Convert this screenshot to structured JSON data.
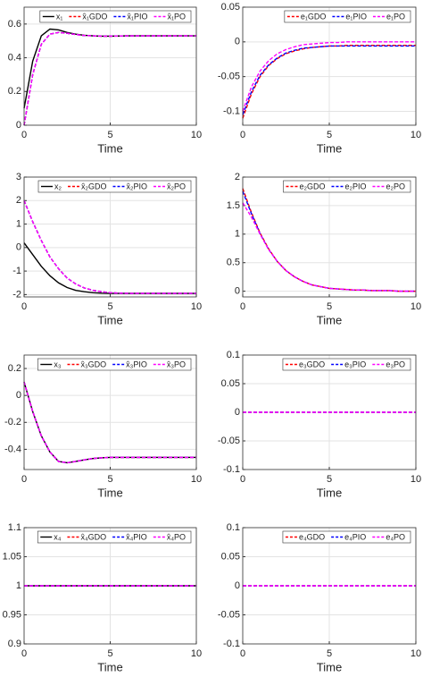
{
  "chart_data": [
    {
      "type": "line",
      "xlabel": "Time",
      "xlim": [
        0,
        10
      ],
      "xticks": [
        0,
        5,
        10
      ],
      "ylim": [
        0,
        0.7
      ],
      "yticks": [
        0,
        0.2,
        0.4,
        0.6
      ],
      "grid": true,
      "legend": "upper right",
      "x": [
        0,
        0.5,
        1,
        1.5,
        2,
        2.5,
        3,
        3.5,
        4,
        4.5,
        5,
        5.5,
        6,
        6.5,
        7,
        7.5,
        8,
        8.5,
        9,
        9.5,
        10
      ],
      "series": [
        {
          "name": "x₁",
          "color": "#000000",
          "linestyle": "solid",
          "values": [
            0.1,
            0.38,
            0.53,
            0.57,
            0.565,
            0.55,
            0.54,
            0.533,
            0.53,
            0.528,
            0.528,
            0.529,
            0.53,
            0.53,
            0.53,
            0.53,
            0.53,
            0.53,
            0.53,
            0.53,
            0.53
          ]
        },
        {
          "name": "x̂₁GDO",
          "color": "#ff0000",
          "linestyle": "dashed",
          "values": [
            0,
            0.3,
            0.48,
            0.54,
            0.55,
            0.545,
            0.538,
            0.532,
            0.53,
            0.528,
            0.528,
            0.529,
            0.53,
            0.53,
            0.53,
            0.53,
            0.53,
            0.53,
            0.53,
            0.53,
            0.53
          ]
        },
        {
          "name": "x̂₁PIO",
          "color": "#0000ff",
          "linestyle": "dashed",
          "values": [
            0,
            0.3,
            0.48,
            0.54,
            0.55,
            0.545,
            0.538,
            0.532,
            0.53,
            0.528,
            0.528,
            0.529,
            0.53,
            0.53,
            0.53,
            0.53,
            0.53,
            0.53,
            0.53,
            0.53,
            0.53
          ]
        },
        {
          "name": "x̂₁PO",
          "color": "#ff00ff",
          "linestyle": "dashed",
          "values": [
            0,
            0.3,
            0.48,
            0.54,
            0.55,
            0.545,
            0.538,
            0.532,
            0.53,
            0.528,
            0.528,
            0.529,
            0.53,
            0.53,
            0.53,
            0.53,
            0.53,
            0.53,
            0.53,
            0.53,
            0.53
          ]
        }
      ]
    },
    {
      "type": "line",
      "xlabel": "Time",
      "xlim": [
        0,
        10
      ],
      "xticks": [
        0,
        5,
        10
      ],
      "ylim": [
        -0.12,
        0.05
      ],
      "yticks": [
        -0.1,
        -0.05,
        0,
        0.05
      ],
      "grid": true,
      "legend": "upper right",
      "x": [
        0,
        0.5,
        1,
        1.5,
        2,
        2.5,
        3,
        3.5,
        4,
        4.5,
        5,
        5.5,
        6,
        6.5,
        7,
        7.5,
        8,
        8.5,
        9,
        9.5,
        10
      ],
      "series": [
        {
          "name": "e₁GDO",
          "color": "#ff0000",
          "linestyle": "dashed",
          "values": [
            -0.11,
            -0.075,
            -0.05,
            -0.034,
            -0.024,
            -0.017,
            -0.013,
            -0.01,
            -0.008,
            -0.007,
            -0.006,
            -0.006,
            -0.005,
            -0.005,
            -0.005,
            -0.005,
            -0.005,
            -0.005,
            -0.005,
            -0.005,
            -0.005
          ]
        },
        {
          "name": "e₁PIO",
          "color": "#0000ff",
          "linestyle": "dashed",
          "values": [
            -0.105,
            -0.072,
            -0.048,
            -0.033,
            -0.023,
            -0.016,
            -0.012,
            -0.009,
            -0.008,
            -0.007,
            -0.006,
            -0.006,
            -0.006,
            -0.006,
            -0.006,
            -0.006,
            -0.006,
            -0.006,
            -0.006,
            -0.006,
            -0.006
          ]
        },
        {
          "name": "e₁PO",
          "color": "#ff00ff",
          "linestyle": "dashed",
          "values": [
            -0.1,
            -0.065,
            -0.042,
            -0.027,
            -0.017,
            -0.011,
            -0.007,
            -0.004,
            -0.003,
            -0.002,
            -0.001,
            -0.001,
            0,
            0,
            0,
            0,
            0,
            0,
            0,
            0,
            0
          ]
        }
      ]
    },
    {
      "type": "line",
      "xlabel": "Time",
      "xlim": [
        0,
        10
      ],
      "xticks": [
        0,
        5,
        10
      ],
      "ylim": [
        -2.1,
        3
      ],
      "yticks": [
        -2,
        -1,
        0,
        1,
        2,
        3
      ],
      "grid": true,
      "legend": "upper right",
      "x": [
        0,
        0.5,
        1,
        1.5,
        2,
        2.5,
        3,
        3.5,
        4,
        4.5,
        5,
        5.5,
        6,
        6.5,
        7,
        7.5,
        8,
        8.5,
        9,
        9.5,
        10
      ],
      "series": [
        {
          "name": "x₂",
          "color": "#000000",
          "linestyle": "solid",
          "values": [
            0.2,
            -0.3,
            -0.8,
            -1.2,
            -1.5,
            -1.7,
            -1.82,
            -1.88,
            -1.92,
            -1.94,
            -1.95,
            -1.95,
            -1.95,
            -1.95,
            -1.95,
            -1.95,
            -1.95,
            -1.95,
            -1.95,
            -1.95,
            -1.95
          ]
        },
        {
          "name": "x̂₂GDO",
          "color": "#ff0000",
          "linestyle": "dashed",
          "values": [
            2,
            1.1,
            0.3,
            -0.4,
            -0.9,
            -1.3,
            -1.55,
            -1.72,
            -1.82,
            -1.88,
            -1.92,
            -1.94,
            -1.95,
            -1.95,
            -1.95,
            -1.95,
            -1.95,
            -1.95,
            -1.95,
            -1.95,
            -1.95
          ]
        },
        {
          "name": "x̂₂PIO",
          "color": "#0000ff",
          "linestyle": "dashed",
          "values": [
            2,
            1.1,
            0.3,
            -0.4,
            -0.9,
            -1.3,
            -1.55,
            -1.72,
            -1.82,
            -1.88,
            -1.92,
            -1.94,
            -1.95,
            -1.95,
            -1.95,
            -1.95,
            -1.95,
            -1.95,
            -1.95,
            -1.95,
            -1.95
          ]
        },
        {
          "name": "x̂₂PO",
          "color": "#ff00ff",
          "linestyle": "dashed",
          "values": [
            2,
            1.1,
            0.3,
            -0.4,
            -0.9,
            -1.3,
            -1.55,
            -1.72,
            -1.82,
            -1.88,
            -1.92,
            -1.94,
            -1.95,
            -1.95,
            -1.95,
            -1.95,
            -1.95,
            -1.95,
            -1.95,
            -1.95,
            -1.95
          ]
        }
      ]
    },
    {
      "type": "line",
      "xlabel": "Time",
      "xlim": [
        0,
        10
      ],
      "xticks": [
        0,
        5,
        10
      ],
      "ylim": [
        -0.1,
        2
      ],
      "yticks": [
        0,
        0.5,
        1,
        1.5,
        2
      ],
      "grid": true,
      "legend": "upper right",
      "x": [
        0,
        0.5,
        1,
        1.5,
        2,
        2.5,
        3,
        3.5,
        4,
        4.5,
        5,
        5.5,
        6,
        6.5,
        7,
        7.5,
        8,
        8.5,
        9,
        9.5,
        10
      ],
      "series": [
        {
          "name": "e₂GDO",
          "color": "#ff0000",
          "linestyle": "dashed",
          "values": [
            1.8,
            1.38,
            1.02,
            0.74,
            0.52,
            0.36,
            0.25,
            0.17,
            0.11,
            0.08,
            0.05,
            0.04,
            0.03,
            0.02,
            0.02,
            0.01,
            0.01,
            0.01,
            0,
            0,
            0
          ]
        },
        {
          "name": "e₂PIO",
          "color": "#0000ff",
          "linestyle": "dashed",
          "values": [
            1.75,
            1.36,
            1.01,
            0.73,
            0.52,
            0.36,
            0.25,
            0.17,
            0.11,
            0.08,
            0.05,
            0.04,
            0.03,
            0.02,
            0.02,
            0.01,
            0.01,
            0.01,
            0,
            0,
            0
          ]
        },
        {
          "name": "e₂PO",
          "color": "#ff00ff",
          "linestyle": "dashed",
          "values": [
            1.55,
            1.3,
            1.0,
            0.73,
            0.52,
            0.36,
            0.25,
            0.17,
            0.11,
            0.08,
            0.05,
            0.04,
            0.03,
            0.02,
            0.02,
            0.01,
            0.01,
            0.01,
            0,
            0,
            0
          ]
        }
      ]
    },
    {
      "type": "line",
      "xlabel": "Time",
      "xlim": [
        0,
        10
      ],
      "xticks": [
        0,
        5,
        10
      ],
      "ylim": [
        -0.55,
        0.3
      ],
      "yticks": [
        -0.4,
        -0.2,
        0,
        0.2
      ],
      "grid": true,
      "legend": "upper right",
      "x": [
        0,
        0.5,
        1,
        1.5,
        2,
        2.5,
        3,
        3.5,
        4,
        4.5,
        5,
        5.5,
        6,
        6.5,
        7,
        7.5,
        8,
        8.5,
        9,
        9.5,
        10
      ],
      "series": [
        {
          "name": "x₃",
          "color": "#000000",
          "linestyle": "solid",
          "values": [
            0.1,
            -0.12,
            -0.3,
            -0.42,
            -0.49,
            -0.5,
            -0.49,
            -0.478,
            -0.468,
            -0.463,
            -0.46,
            -0.46,
            -0.46,
            -0.46,
            -0.46,
            -0.46,
            -0.46,
            -0.46,
            -0.46,
            -0.46,
            -0.46
          ]
        },
        {
          "name": "x̂₃GDO",
          "color": "#ff0000",
          "linestyle": "dashed",
          "values": [
            0.1,
            -0.12,
            -0.3,
            -0.42,
            -0.49,
            -0.5,
            -0.49,
            -0.478,
            -0.468,
            -0.463,
            -0.46,
            -0.46,
            -0.46,
            -0.46,
            -0.46,
            -0.46,
            -0.46,
            -0.46,
            -0.46,
            -0.46,
            -0.46
          ]
        },
        {
          "name": "x̂₃PIO",
          "color": "#0000ff",
          "linestyle": "dashed",
          "values": [
            0.1,
            -0.12,
            -0.3,
            -0.42,
            -0.49,
            -0.5,
            -0.49,
            -0.478,
            -0.468,
            -0.463,
            -0.46,
            -0.46,
            -0.46,
            -0.46,
            -0.46,
            -0.46,
            -0.46,
            -0.46,
            -0.46,
            -0.46,
            -0.46
          ]
        },
        {
          "name": "x̂₃PO",
          "color": "#ff00ff",
          "linestyle": "dashed",
          "values": [
            0.1,
            -0.12,
            -0.3,
            -0.42,
            -0.49,
            -0.5,
            -0.49,
            -0.478,
            -0.468,
            -0.463,
            -0.46,
            -0.46,
            -0.46,
            -0.46,
            -0.46,
            -0.46,
            -0.46,
            -0.46,
            -0.46,
            -0.46,
            -0.46
          ]
        }
      ]
    },
    {
      "type": "line",
      "xlabel": "Time",
      "xlim": [
        0,
        10
      ],
      "xticks": [
        0,
        5,
        10
      ],
      "ylim": [
        -0.1,
        0.1
      ],
      "yticks": [
        -0.1,
        -0.05,
        0,
        0.05,
        0.1
      ],
      "grid": true,
      "legend": "upper right",
      "x": [
        0,
        0.5,
        1,
        1.5,
        2,
        2.5,
        3,
        3.5,
        4,
        4.5,
        5,
        5.5,
        6,
        6.5,
        7,
        7.5,
        8,
        8.5,
        9,
        9.5,
        10
      ],
      "series": [
        {
          "name": "e₃GDO",
          "color": "#ff0000",
          "linestyle": "dashed",
          "values": [
            0,
            0,
            0,
            0,
            0,
            0,
            0,
            0,
            0,
            0,
            0,
            0,
            0,
            0,
            0,
            0,
            0,
            0,
            0,
            0,
            0
          ]
        },
        {
          "name": "e₃PIO",
          "color": "#0000ff",
          "linestyle": "dashed",
          "values": [
            0,
            0,
            0,
            0,
            0,
            0,
            0,
            0,
            0,
            0,
            0,
            0,
            0,
            0,
            0,
            0,
            0,
            0,
            0,
            0,
            0
          ]
        },
        {
          "name": "e₃PO",
          "color": "#ff00ff",
          "linestyle": "dashed",
          "values": [
            0,
            0,
            0,
            0,
            0,
            0,
            0,
            0,
            0,
            0,
            0,
            0,
            0,
            0,
            0,
            0,
            0,
            0,
            0,
            0,
            0
          ]
        }
      ]
    },
    {
      "type": "line",
      "xlabel": "Time",
      "xlim": [
        0,
        10
      ],
      "xticks": [
        0,
        5,
        10
      ],
      "ylim": [
        0.9,
        1.1
      ],
      "yticks": [
        0.9,
        0.95,
        1,
        1.05,
        1.1
      ],
      "grid": true,
      "legend": "upper right",
      "x": [
        0,
        0.5,
        1,
        1.5,
        2,
        2.5,
        3,
        3.5,
        4,
        4.5,
        5,
        5.5,
        6,
        6.5,
        7,
        7.5,
        8,
        8.5,
        9,
        9.5,
        10
      ],
      "series": [
        {
          "name": "x₄",
          "color": "#000000",
          "linestyle": "solid",
          "values": [
            1,
            1,
            1,
            1,
            1,
            1,
            1,
            1,
            1,
            1,
            1,
            1,
            1,
            1,
            1,
            1,
            1,
            1,
            1,
            1,
            1
          ]
        },
        {
          "name": "x̂₄GDO",
          "color": "#ff0000",
          "linestyle": "dashed",
          "values": [
            1,
            1,
            1,
            1,
            1,
            1,
            1,
            1,
            1,
            1,
            1,
            1,
            1,
            1,
            1,
            1,
            1,
            1,
            1,
            1,
            1
          ]
        },
        {
          "name": "x̂₄PIO",
          "color": "#0000ff",
          "linestyle": "dashed",
          "values": [
            1,
            1,
            1,
            1,
            1,
            1,
            1,
            1,
            1,
            1,
            1,
            1,
            1,
            1,
            1,
            1,
            1,
            1,
            1,
            1,
            1
          ]
        },
        {
          "name": "x̂₄PO",
          "color": "#ff00ff",
          "linestyle": "dashed",
          "values": [
            1,
            1,
            1,
            1,
            1,
            1,
            1,
            1,
            1,
            1,
            1,
            1,
            1,
            1,
            1,
            1,
            1,
            1,
            1,
            1,
            1
          ]
        }
      ]
    },
    {
      "type": "line",
      "xlabel": "Time",
      "xlim": [
        0,
        10
      ],
      "xticks": [
        0,
        5,
        10
      ],
      "ylim": [
        -0.1,
        0.1
      ],
      "yticks": [
        -0.1,
        -0.05,
        0,
        0.05,
        0.1
      ],
      "grid": true,
      "legend": "upper right",
      "x": [
        0,
        0.5,
        1,
        1.5,
        2,
        2.5,
        3,
        3.5,
        4,
        4.5,
        5,
        5.5,
        6,
        6.5,
        7,
        7.5,
        8,
        8.5,
        9,
        9.5,
        10
      ],
      "series": [
        {
          "name": "e₄GDO",
          "color": "#ff0000",
          "linestyle": "dashed",
          "values": [
            0,
            0,
            0,
            0,
            0,
            0,
            0,
            0,
            0,
            0,
            0,
            0,
            0,
            0,
            0,
            0,
            0,
            0,
            0,
            0,
            0
          ]
        },
        {
          "name": "e₄PIO",
          "color": "#0000ff",
          "linestyle": "dashed",
          "values": [
            0,
            0,
            0,
            0,
            0,
            0,
            0,
            0,
            0,
            0,
            0,
            0,
            0,
            0,
            0,
            0,
            0,
            0,
            0,
            0,
            0
          ]
        },
        {
          "name": "e₄PO",
          "color": "#ff00ff",
          "linestyle": "dashed",
          "values": [
            0,
            0,
            0,
            0,
            0,
            0,
            0,
            0,
            0,
            0,
            0,
            0,
            0,
            0,
            0,
            0,
            0,
            0,
            0,
            0,
            0
          ]
        }
      ]
    }
  ]
}
